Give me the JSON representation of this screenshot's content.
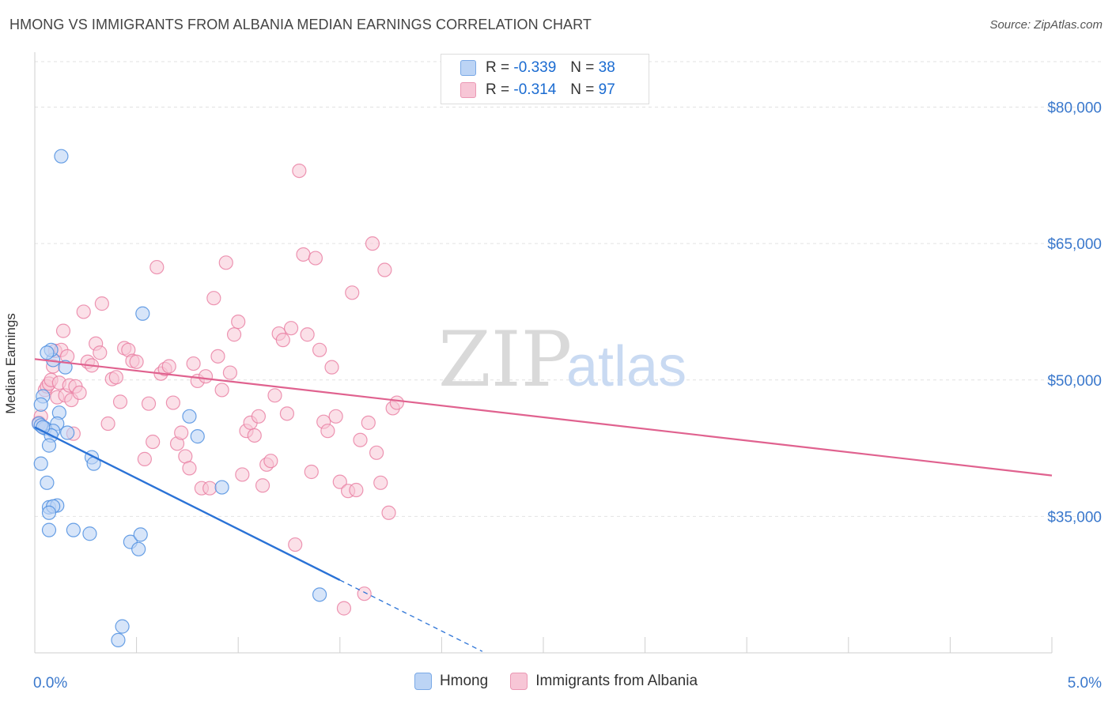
{
  "header": {
    "title": "HMONG VS IMMIGRANTS FROM ALBANIA MEDIAN EARNINGS CORRELATION CHART",
    "source": "Source: ZipAtlas.com"
  },
  "legend_top": {
    "rows": [
      {
        "r_label": "R =",
        "r_value": "-0.339",
        "n_label": "N =",
        "n_value": "38"
      },
      {
        "r_label": "R =",
        "r_value": "-0.314",
        "n_label": "N =",
        "n_value": "97"
      }
    ]
  },
  "watermark": {
    "zip": "ZIP",
    "atlas": "atlas"
  },
  "colors": {
    "hmong": "#4f8fe0",
    "hmong_fill": "#bcd4f5",
    "hmong_line": "#2a72d6",
    "albania": "#e87ca0",
    "albania_fill": "#f7c6d6",
    "albania_line": "#e0628f",
    "tick_label": "#3a78cc"
  },
  "chart_data": {
    "type": "scatter",
    "title": "HMONG VS IMMIGRANTS FROM ALBANIA MEDIAN EARNINGS CORRELATION CHART",
    "ylabel": "Median Earnings",
    "xlim": [
      0,
      5.0
    ],
    "ylim": [
      20000,
      85000
    ],
    "x_tick_labels": [
      "0.0%",
      "5.0%"
    ],
    "y_ticks": [
      35000,
      50000,
      65000,
      80000
    ],
    "y_tick_labels": [
      "$35,000",
      "$50,000",
      "$65,000",
      "$80,000"
    ],
    "grid": true,
    "legend_position": "bottom",
    "series": [
      {
        "name": "Hmong",
        "r": -0.339,
        "n": 38,
        "trend": {
          "x0": 0.0,
          "y0": 44800,
          "x1": 1.5,
          "y1": 28000,
          "dash_to_x": 2.2
        },
        "points": [
          [
            0.13,
            74600
          ],
          [
            0.04,
            48200
          ],
          [
            0.03,
            47300
          ],
          [
            0.12,
            46400
          ],
          [
            0.02,
            45200
          ],
          [
            0.05,
            44700
          ],
          [
            0.11,
            45200
          ],
          [
            0.09,
            44400
          ],
          [
            0.08,
            43900
          ],
          [
            0.07,
            42800
          ],
          [
            0.03,
            40800
          ],
          [
            0.09,
            52200
          ],
          [
            0.08,
            53300
          ],
          [
            0.06,
            53000
          ],
          [
            0.15,
            51400
          ],
          [
            0.06,
            38700
          ],
          [
            0.07,
            36000
          ],
          [
            0.11,
            36200
          ],
          [
            0.09,
            36100
          ],
          [
            0.07,
            35400
          ],
          [
            0.07,
            33500
          ],
          [
            0.19,
            33500
          ],
          [
            0.28,
            41500
          ],
          [
            0.29,
            40800
          ],
          [
            0.27,
            33100
          ],
          [
            0.47,
            32200
          ],
          [
            0.51,
            31400
          ],
          [
            0.52,
            33000
          ],
          [
            0.53,
            57300
          ],
          [
            0.76,
            46000
          ],
          [
            0.8,
            43800
          ],
          [
            0.92,
            38200
          ],
          [
            1.4,
            26400
          ],
          [
            0.43,
            22900
          ],
          [
            0.41,
            21400
          ],
          [
            0.03,
            45000
          ],
          [
            0.04,
            44800
          ],
          [
            0.16,
            44200
          ]
        ]
      },
      {
        "name": "Immigrants from Albania",
        "r": -0.314,
        "n": 97,
        "trend": {
          "x0": 0.0,
          "y0": 52300,
          "x1": 5.0,
          "y1": 39500
        },
        "points": [
          [
            0.02,
            45300
          ],
          [
            0.03,
            46000
          ],
          [
            0.04,
            44800
          ],
          [
            0.05,
            48900
          ],
          [
            0.06,
            49300
          ],
          [
            0.07,
            49600
          ],
          [
            0.08,
            50000
          ],
          [
            0.09,
            51500
          ],
          [
            0.1,
            53200
          ],
          [
            0.11,
            48100
          ],
          [
            0.12,
            49700
          ],
          [
            0.13,
            53300
          ],
          [
            0.14,
            55400
          ],
          [
            0.15,
            48300
          ],
          [
            0.16,
            52600
          ],
          [
            0.17,
            49400
          ],
          [
            0.18,
            47800
          ],
          [
            0.19,
            44100
          ],
          [
            0.2,
            49300
          ],
          [
            0.22,
            48600
          ],
          [
            0.24,
            57500
          ],
          [
            0.26,
            52000
          ],
          [
            0.28,
            51600
          ],
          [
            0.3,
            54000
          ],
          [
            0.32,
            53000
          ],
          [
            0.33,
            58400
          ],
          [
            0.36,
            45200
          ],
          [
            0.38,
            50100
          ],
          [
            0.4,
            50300
          ],
          [
            0.42,
            47600
          ],
          [
            0.44,
            53500
          ],
          [
            0.46,
            53300
          ],
          [
            0.48,
            52100
          ],
          [
            0.5,
            52000
          ],
          [
            0.54,
            41300
          ],
          [
            0.56,
            47400
          ],
          [
            0.58,
            43200
          ],
          [
            0.6,
            62400
          ],
          [
            0.62,
            50700
          ],
          [
            0.64,
            51200
          ],
          [
            0.66,
            51500
          ],
          [
            0.68,
            47500
          ],
          [
            0.7,
            43000
          ],
          [
            0.72,
            44200
          ],
          [
            0.74,
            41600
          ],
          [
            0.76,
            40300
          ],
          [
            0.78,
            51800
          ],
          [
            0.8,
            49900
          ],
          [
            0.82,
            38100
          ],
          [
            0.84,
            50400
          ],
          [
            0.86,
            38100
          ],
          [
            0.88,
            59000
          ],
          [
            0.9,
            52600
          ],
          [
            0.92,
            48900
          ],
          [
            0.94,
            62900
          ],
          [
            0.96,
            50800
          ],
          [
            0.98,
            55000
          ],
          [
            1.0,
            56400
          ],
          [
            1.02,
            39600
          ],
          [
            1.04,
            44400
          ],
          [
            1.06,
            45300
          ],
          [
            1.08,
            43900
          ],
          [
            1.1,
            46000
          ],
          [
            1.12,
            38400
          ],
          [
            1.14,
            40700
          ],
          [
            1.16,
            41100
          ],
          [
            1.18,
            48300
          ],
          [
            1.2,
            55100
          ],
          [
            1.22,
            54400
          ],
          [
            1.24,
            46300
          ],
          [
            1.26,
            55700
          ],
          [
            1.28,
            31900
          ],
          [
            1.3,
            73000
          ],
          [
            1.32,
            63800
          ],
          [
            1.34,
            55000
          ],
          [
            1.36,
            39900
          ],
          [
            1.38,
            63400
          ],
          [
            1.4,
            53300
          ],
          [
            1.42,
            45400
          ],
          [
            1.44,
            44400
          ],
          [
            1.46,
            51400
          ],
          [
            1.48,
            46000
          ],
          [
            1.5,
            38800
          ],
          [
            1.52,
            24900
          ],
          [
            1.54,
            37800
          ],
          [
            1.56,
            59600
          ],
          [
            1.58,
            37900
          ],
          [
            1.6,
            43400
          ],
          [
            1.62,
            26500
          ],
          [
            1.64,
            45300
          ],
          [
            1.66,
            65000
          ],
          [
            1.68,
            42000
          ],
          [
            1.7,
            38700
          ],
          [
            1.72,
            62100
          ],
          [
            1.74,
            35400
          ],
          [
            1.76,
            46900
          ],
          [
            1.78,
            47500
          ]
        ]
      }
    ]
  },
  "bottom_legend": {
    "items": [
      {
        "label": "Hmong"
      },
      {
        "label": "Immigrants from Albania"
      }
    ]
  }
}
